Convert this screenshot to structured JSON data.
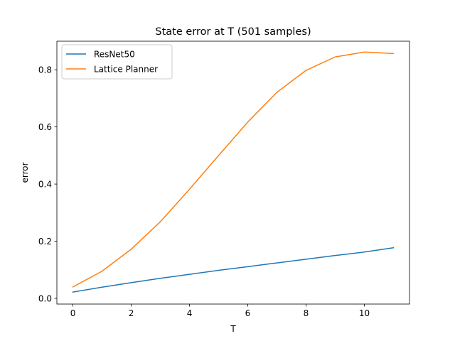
{
  "chart_data": {
    "type": "line",
    "title": "State error at T (501 samples)",
    "xlabel": "T",
    "ylabel": "error",
    "xlim": [
      -0.55,
      11.55
    ],
    "ylim": [
      -0.02,
      0.9
    ],
    "xticks": [
      0,
      2,
      4,
      6,
      8,
      10
    ],
    "yticks": [
      0.0,
      0.2,
      0.4,
      0.6,
      0.8
    ],
    "xtick_labels": [
      "0",
      "2",
      "4",
      "6",
      "8",
      "10"
    ],
    "ytick_labels": [
      "0.0",
      "0.2",
      "0.4",
      "0.6",
      "0.8"
    ],
    "grid": false,
    "legend_position": "top-left",
    "x": [
      0,
      1,
      2,
      3,
      4,
      5,
      6,
      7,
      8,
      9,
      10,
      11
    ],
    "series": [
      {
        "name": "ResNet50",
        "color": "#1f77b4",
        "values": [
          0.022,
          0.039,
          0.055,
          0.07,
          0.084,
          0.098,
          0.111,
          0.124,
          0.137,
          0.15,
          0.162,
          0.177
        ]
      },
      {
        "name": "Lattice Planner",
        "color": "#ff7f0e",
        "values": [
          0.04,
          0.095,
          0.172,
          0.268,
          0.382,
          0.5,
          0.617,
          0.721,
          0.798,
          0.845,
          0.862,
          0.857
        ]
      }
    ]
  }
}
